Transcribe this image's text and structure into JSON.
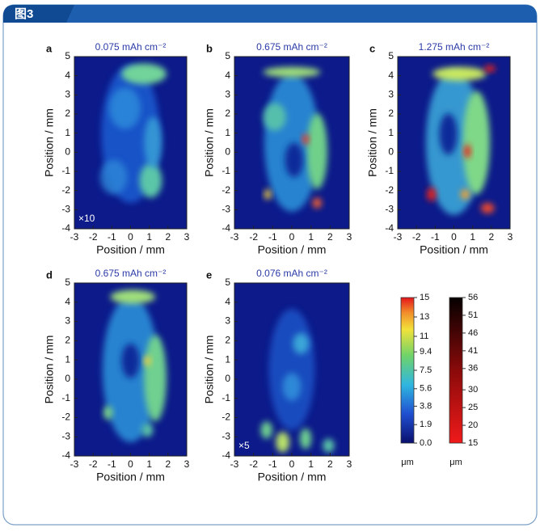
{
  "header": {
    "label": "图3"
  },
  "axes": {
    "xlabel": "Position / mm",
    "ylabel": "Position / mm",
    "xlim": [
      -3,
      3
    ],
    "ylim": [
      -4,
      5
    ],
    "xticks": [
      -3,
      -2,
      -1,
      0,
      1,
      2,
      3
    ],
    "yticks": [
      -4,
      -3,
      -2,
      -1,
      0,
      1,
      2,
      3,
      4,
      5
    ]
  },
  "panels": [
    {
      "label": "a",
      "title": "0.075 mAh cm⁻²",
      "note": "×10"
    },
    {
      "label": "b",
      "title": "0.675 mAh cm⁻²"
    },
    {
      "label": "c",
      "title": "1.275 mAh cm⁻²"
    },
    {
      "label": "d",
      "title": "0.675 mAh cm⁻²"
    },
    {
      "label": "e",
      "title": "0.076 mAh cm⁻²",
      "note": "×5"
    }
  ],
  "colorbars": [
    {
      "lim": [
        0,
        15
      ],
      "ticks": [
        15,
        13,
        11,
        9.4,
        7.5,
        5.6,
        3.8,
        1.9,
        {
          "value": 0,
          "label": "0.0"
        }
      ],
      "unit": "μm"
    },
    {
      "lim": [
        15,
        56
      ],
      "ticks": [
        56,
        51,
        46,
        41,
        36,
        30,
        25,
        20,
        15
      ],
      "unit": "μm"
    }
  ]
}
